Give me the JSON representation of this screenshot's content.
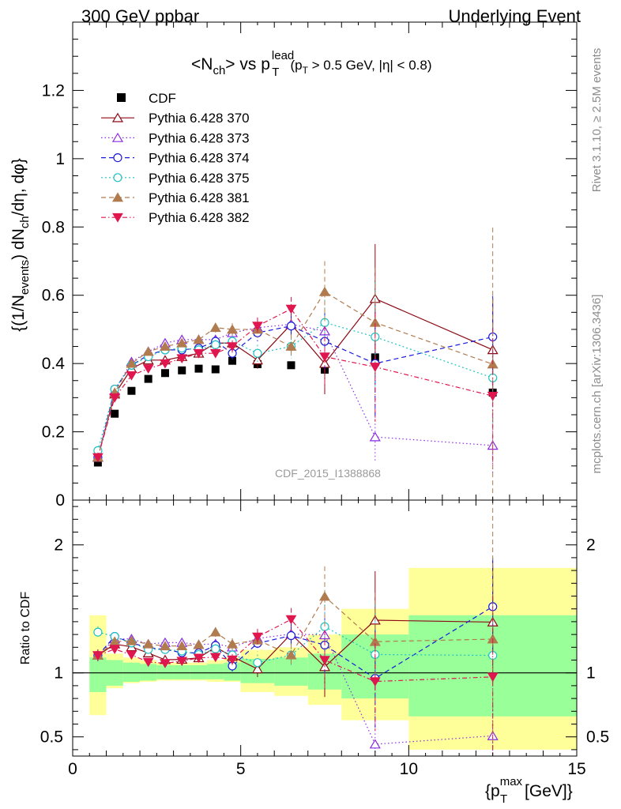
{
  "header": {
    "left": "300 GeV ppbar",
    "right": "Underlying Event"
  },
  "side_labels": {
    "top": "Rivet 3.1.10, ≥ 2.5M events",
    "bottom": "mcplots.cern.ch [arXiv:1306.3436]"
  },
  "watermark": "CDF_2015_I1388868",
  "chart_data": {
    "type": "scatter",
    "title": {
      "main": "<N",
      "main_sub": "ch",
      "vs": "> vs p",
      "vs_sup": "lead",
      "vs_sub": "T",
      "cut1": "(p",
      "cut1_sub": "T",
      "cut2": " > 0.5 GeV, |η| < 0.8)"
    },
    "ylabel_main": "{(1/N",
    "ylabel_sub": "events",
    "ylabel_mid": ") dN",
    "ylabel_sub2": "ch",
    "ylabel_end": "/dη, dφ}",
    "ratio_ylabel": "Ratio to CDF",
    "xlabel": {
      "main": "{p",
      "sup": "max",
      "sub": "T",
      "end": " [GeV]}"
    },
    "xlim": [
      0,
      15
    ],
    "ylim_main": [
      0,
      1.4
    ],
    "ylim_ratio": [
      0.35,
      2.35
    ],
    "x_ticks": [
      "0",
      "5",
      "10",
      "15"
    ],
    "y_ticks_main": [
      "0",
      "0.2",
      "0.4",
      "0.6",
      "0.8",
      "1",
      "1.2"
    ],
    "y_ticks_ratio": [
      "0.5",
      "1",
      "2"
    ],
    "legend_position": "top-left",
    "bins": [
      [
        0.5,
        1.0
      ],
      [
        1.0,
        1.5
      ],
      [
        1.5,
        2.0
      ],
      [
        2.0,
        2.5
      ],
      [
        2.5,
        3.0
      ],
      [
        3.0,
        3.5
      ],
      [
        3.5,
        4.0
      ],
      [
        4.0,
        4.5
      ],
      [
        4.5,
        5.0
      ],
      [
        5.0,
        6.0
      ],
      [
        6.0,
        7.0
      ],
      [
        7.0,
        8.0
      ],
      [
        8.0,
        10.0
      ],
      [
        10.0,
        15.0
      ]
    ],
    "x": [
      0.75,
      1.25,
      1.75,
      2.25,
      2.75,
      3.25,
      3.75,
      4.25,
      4.75,
      5.5,
      6.5,
      7.5,
      9.0,
      12.5
    ],
    "data": {
      "name": "CDF",
      "values": [
        0.11,
        0.253,
        0.32,
        0.355,
        0.372,
        0.38,
        0.385,
        0.383,
        0.408,
        0.398,
        0.395,
        0.382,
        0.418,
        0.315
      ],
      "band_inner": [
        [
          0.85,
          1.12
        ],
        [
          0.9,
          1.1
        ],
        [
          0.93,
          1.08
        ],
        [
          0.94,
          1.07
        ],
        [
          0.95,
          1.06
        ],
        [
          0.95,
          1.06
        ],
        [
          0.95,
          1.06
        ],
        [
          0.95,
          1.07
        ],
        [
          0.94,
          1.08
        ],
        [
          0.92,
          1.11
        ],
        [
          0.9,
          1.12
        ],
        [
          0.87,
          1.15
        ],
        [
          0.8,
          1.3
        ],
        [
          0.66,
          1.45
        ]
      ],
      "band_outer": [
        [
          0.67,
          1.45
        ],
        [
          0.88,
          1.15
        ],
        [
          0.92,
          1.12
        ],
        [
          0.93,
          1.1
        ],
        [
          0.94,
          1.08
        ],
        [
          0.94,
          1.08
        ],
        [
          0.94,
          1.08
        ],
        [
          0.93,
          1.1
        ],
        [
          0.93,
          1.12
        ],
        [
          0.85,
          1.18
        ],
        [
          0.82,
          1.2
        ],
        [
          0.75,
          1.3
        ],
        [
          0.63,
          1.5
        ],
        [
          0.4,
          1.82
        ]
      ]
    },
    "series": [
      {
        "name": "Pythia 6.428 370",
        "color": "#8b0a14",
        "marker": "triangle-open",
        "dash": "",
        "values": [
          0.125,
          0.31,
          0.385,
          0.41,
          0.41,
          0.42,
          0.43,
          0.46,
          0.46,
          0.41,
          0.515,
          0.4,
          0.59,
          0.44
        ],
        "errors": [
          0.005,
          0.006,
          0.008,
          0.008,
          0.009,
          0.01,
          0.012,
          0.014,
          0.018,
          0.025,
          0.035,
          0.09,
          0.16,
          0.15
        ]
      },
      {
        "name": "Pythia 6.428 373",
        "color": "#8a2be2",
        "marker": "triangle-open",
        "dash": "1.5,3",
        "values": [
          0.125,
          0.32,
          0.405,
          0.435,
          0.46,
          0.47,
          0.47,
          0.47,
          0.49,
          0.505,
          0.515,
          0.495,
          0.185,
          0.16
        ],
        "errors": [
          0.005,
          0.006,
          0.008,
          0.008,
          0.009,
          0.01,
          0.012,
          0.014,
          0.018,
          0.025,
          0.035,
          0.09,
          0.07,
          0.08
        ]
      },
      {
        "name": "Pythia 6.428 374",
        "color": "#1a1ad9",
        "marker": "circle-open",
        "dash": "6,4",
        "values": [
          0.125,
          0.325,
          0.395,
          0.425,
          0.44,
          0.44,
          0.445,
          0.465,
          0.43,
          0.49,
          0.51,
          0.465,
          0.4,
          0.478
        ],
        "errors": [
          0.005,
          0.006,
          0.008,
          0.008,
          0.009,
          0.01,
          0.012,
          0.014,
          0.018,
          0.025,
          0.035,
          0.09,
          0.16,
          0.12
        ]
      },
      {
        "name": "Pythia 6.428 375",
        "color": "#20c2c2",
        "marker": "circle-open",
        "dash": "2,3",
        "values": [
          0.145,
          0.325,
          0.395,
          0.42,
          0.44,
          0.445,
          0.44,
          0.455,
          0.465,
          0.43,
          0.45,
          0.52,
          0.478,
          0.358
        ],
        "errors": [
          0.005,
          0.006,
          0.008,
          0.008,
          0.009,
          0.01,
          0.012,
          0.014,
          0.018,
          0.025,
          0.035,
          0.09,
          0.16,
          0.15
        ]
      },
      {
        "name": "Pythia 6.428 381",
        "color": "#b07b4f",
        "marker": "triangle-filled",
        "dash": "6,4",
        "values": [
          0.125,
          0.315,
          0.4,
          0.435,
          0.45,
          0.46,
          0.47,
          0.505,
          0.5,
          0.5,
          0.45,
          0.61,
          0.52,
          0.398
        ],
        "errors": [
          0.005,
          0.006,
          0.008,
          0.008,
          0.009,
          0.01,
          0.012,
          0.014,
          0.018,
          0.025,
          0.035,
          0.09,
          0.16,
          0.4
        ]
      },
      {
        "name": "Pythia 6.428 382",
        "color": "#e0164f",
        "marker": "triangle-down-filled",
        "dash": "6,3,1.5,3",
        "values": [
          0.125,
          0.3,
          0.365,
          0.385,
          0.4,
          0.415,
          0.43,
          0.43,
          0.45,
          0.51,
          0.56,
          0.42,
          0.39,
          0.305
        ],
        "errors": [
          0.005,
          0.006,
          0.008,
          0.008,
          0.009,
          0.01,
          0.012,
          0.014,
          0.018,
          0.025,
          0.035,
          0.09,
          0.16,
          0.2
        ]
      }
    ]
  }
}
